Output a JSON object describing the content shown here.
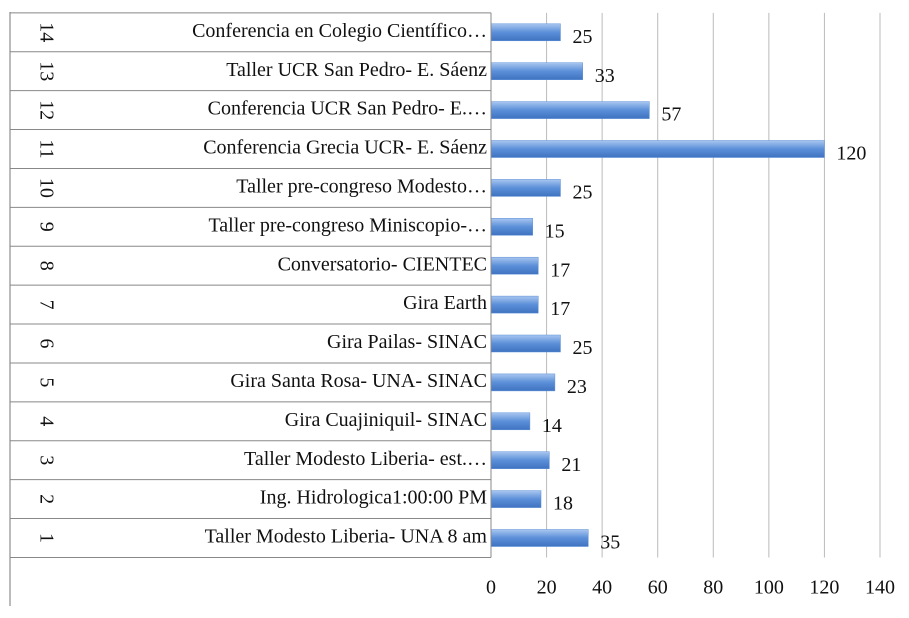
{
  "chart_data": {
    "type": "bar",
    "orientation": "horizontal",
    "row_numbers": [
      "1",
      "2",
      "3",
      "4",
      "5",
      "6",
      "7",
      "8",
      "9",
      "10",
      "11",
      "12",
      "13",
      "14"
    ],
    "categories": [
      "Taller Modesto Liberia- UNA 8 am",
      "Ing. Hidrologica1:00:00 PM",
      "Taller Modesto Liberia- est.…",
      "Gira Cuajiniquil- SINAC",
      "Gira Santa Rosa- UNA- SINAC",
      "Gira Pailas- SINAC",
      "Gira Earth",
      "Conversatorio- CIENTEC",
      "Taller pre-congreso Miniscopio-…",
      "Taller pre-congreso Modesto…",
      "Conferencia Grecia UCR- E. Sáenz",
      "Conferencia UCR San Pedro-  E.…",
      "Taller UCR San Pedro-  E. Sáenz",
      "Conferencia en Colegio Científico…"
    ],
    "values": [
      35,
      18,
      21,
      14,
      23,
      25,
      17,
      17,
      15,
      25,
      120,
      57,
      33,
      25
    ],
    "color": "#5b8fd8",
    "xlim": [
      0,
      140
    ],
    "xticks": [
      0,
      20,
      40,
      60,
      80,
      100,
      120,
      140
    ],
    "grid": true
  }
}
